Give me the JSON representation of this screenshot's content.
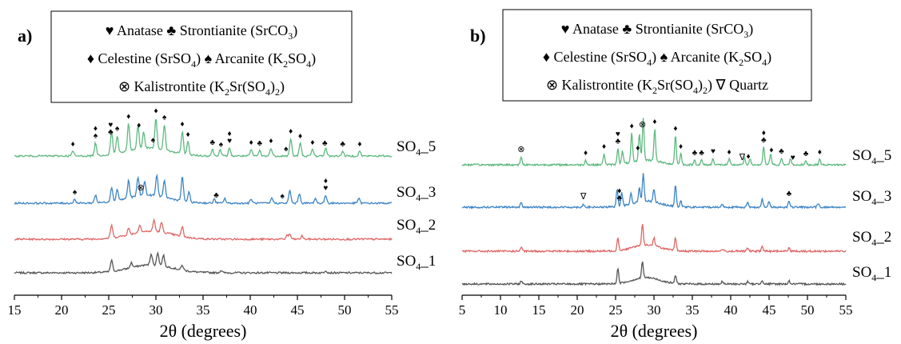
{
  "chart_data": [
    {
      "type": "line",
      "panel_label": "a)",
      "xlabel": "2θ (degrees)",
      "xlim": [
        15,
        55
      ],
      "xticks": [
        15,
        20,
        25,
        30,
        35,
        40,
        45,
        50,
        55
      ],
      "ylabel": "",
      "legend": {
        "position": "top-center",
        "lines": [
          [
            {
              "sym": "♥",
              "text": "Anatase"
            },
            {
              "sym": "♣",
              "text": "Strontianite (SrCO",
              "sub": "3",
              "after": ")"
            }
          ],
          [
            {
              "sym": "♦",
              "text": "Celestine (SrSO",
              "sub": "4",
              "after": ")"
            },
            {
              "sym": "♠",
              "text": "Arcanite (K",
              "sub": "2",
              "after": "SO",
              "sub2": "4",
              "after2": ")"
            }
          ],
          [
            {
              "sym": "⊗",
              "text": "Kalistrontite (K",
              "sub": "2",
              "after": "Sr(SO",
              "sub2": "4",
              "after2": ")",
              "sub3": "2",
              "after3": ")"
            }
          ]
        ]
      },
      "series": [
        {
          "name": "SO4_1",
          "label_main": "SO",
          "label_sub": "4",
          "label_tail": "_1",
          "color": "#555555",
          "peaks": [
            [
              25.3,
              14
            ],
            [
              27.4,
              6
            ],
            [
              29.5,
              14
            ],
            [
              30.2,
              16
            ],
            [
              30.8,
              14
            ],
            [
              32.8,
              6
            ],
            [
              36.9,
              3
            ],
            [
              48.0,
              3
            ]
          ]
        },
        {
          "name": "SO4_2",
          "label_main": "SO",
          "label_sub": "4",
          "label_tail": "_2",
          "color": "#e06666",
          "peaks": [
            [
              25.3,
              16
            ],
            [
              27.1,
              8
            ],
            [
              28.3,
              10
            ],
            [
              29.8,
              14
            ],
            [
              30.6,
              12
            ],
            [
              32.8,
              12
            ],
            [
              43.9,
              5
            ],
            [
              44.2,
              6
            ],
            [
              45.5,
              4
            ]
          ]
        },
        {
          "name": "SO4_3",
          "label_main": "SO",
          "label_sub": "4",
          "label_tail": "_3",
          "color": "#3d85c6",
          "peaks": [
            [
              21.4,
              5
            ],
            [
              23.6,
              10
            ],
            [
              25.3,
              18
            ],
            [
              25.9,
              14
            ],
            [
              27.1,
              22
            ],
            [
              28.1,
              24
            ],
            [
              28.8,
              18
            ],
            [
              30.1,
              26
            ],
            [
              30.9,
              20
            ],
            [
              32.8,
              30
            ],
            [
              33.5,
              12
            ],
            [
              36.2,
              5
            ],
            [
              37.3,
              6
            ],
            [
              40.1,
              5
            ],
            [
              42.3,
              7
            ],
            [
              44.2,
              16
            ],
            [
              45.2,
              12
            ],
            [
              46.9,
              6
            ],
            [
              48.0,
              10
            ],
            [
              51.5,
              6
            ]
          ]
        },
        {
          "name": "SO4_5",
          "label_main": "SO",
          "label_sub": "4",
          "label_tail": "_5",
          "color": "#5fb97f",
          "peaks": [
            [
              21.2,
              6
            ],
            [
              23.6,
              16
            ],
            [
              25.3,
              28
            ],
            [
              25.9,
              22
            ],
            [
              27.1,
              34
            ],
            [
              28.1,
              30
            ],
            [
              28.7,
              20
            ],
            [
              30.0,
              38
            ],
            [
              30.9,
              32
            ],
            [
              32.8,
              28
            ],
            [
              33.4,
              16
            ],
            [
              36.0,
              8
            ],
            [
              36.8,
              8
            ],
            [
              37.8,
              10
            ],
            [
              40.1,
              8
            ],
            [
              41.0,
              7
            ],
            [
              42.2,
              10
            ],
            [
              44.3,
              22
            ],
            [
              45.3,
              16
            ],
            [
              46.6,
              8
            ],
            [
              48.0,
              10
            ],
            [
              49.8,
              6
            ],
            [
              51.6,
              6
            ]
          ]
        }
      ],
      "markers": [
        {
          "series": "SO4_5",
          "x": 21.2,
          "sym": "♦"
        },
        {
          "series": "SO4_5",
          "x": 23.6,
          "sym": "♦♠"
        },
        {
          "series": "SO4_5",
          "x": 25.2,
          "sym": "♥♣"
        },
        {
          "series": "SO4_5",
          "x": 25.9,
          "sym": "♠"
        },
        {
          "series": "SO4_5",
          "x": 27.1,
          "sym": "♦"
        },
        {
          "series": "SO4_5",
          "x": 28.2,
          "sym": "♦"
        },
        {
          "series": "SO4_5",
          "x": 29.7,
          "sym": "♠"
        },
        {
          "series": "SO4_5",
          "x": 30.0,
          "sym": "♦"
        },
        {
          "series": "SO4_5",
          "x": 30.9,
          "sym": "♠"
        },
        {
          "series": "SO4_5",
          "x": 32.8,
          "sym": "♦"
        },
        {
          "series": "SO4_5",
          "x": 33.4,
          "sym": "♦"
        },
        {
          "series": "SO4_5",
          "x": 36.0,
          "sym": "♣"
        },
        {
          "series": "SO4_5",
          "x": 36.9,
          "sym": "♠"
        },
        {
          "series": "SO4_5",
          "x": 37.8,
          "sym": "♦♥"
        },
        {
          "series": "SO4_5",
          "x": 40.1,
          "sym": "♦"
        },
        {
          "series": "SO4_5",
          "x": 41.0,
          "sym": "♣"
        },
        {
          "series": "SO4_5",
          "x": 42.2,
          "sym": "♦"
        },
        {
          "series": "SO4_5",
          "x": 43.8,
          "sym": "♠"
        },
        {
          "series": "SO4_5",
          "x": 44.3,
          "sym": "♦"
        },
        {
          "series": "SO4_5",
          "x": 45.3,
          "sym": "♦"
        },
        {
          "series": "SO4_5",
          "x": 46.6,
          "sym": "♦"
        },
        {
          "series": "SO4_5",
          "x": 47.9,
          "sym": "♣"
        },
        {
          "series": "SO4_5",
          "x": 49.8,
          "sym": "♣"
        },
        {
          "series": "SO4_5",
          "x": 51.6,
          "sym": "♦"
        },
        {
          "series": "SO4_3",
          "x": 21.4,
          "sym": "♠"
        },
        {
          "series": "SO4_3",
          "x": 28.4,
          "sym": "⊗"
        },
        {
          "series": "SO4_3",
          "x": 36.4,
          "sym": "♣"
        },
        {
          "series": "SO4_3",
          "x": 43.4,
          "sym": "♠"
        },
        {
          "series": "SO4_3",
          "x": 48.0,
          "sym": "♦♥"
        }
      ]
    },
    {
      "type": "line",
      "panel_label": "b)",
      "xlabel": "2θ (degrees)",
      "xlim": [
        5,
        55
      ],
      "xticks": [
        5,
        10,
        15,
        20,
        25,
        30,
        35,
        40,
        45,
        50,
        55
      ],
      "ylabel": "",
      "legend": {
        "position": "top-center",
        "lines": [
          [
            {
              "sym": "♥",
              "text": "Anatase"
            },
            {
              "sym": "♣",
              "text": "Strontianite (SrCO",
              "sub": "3",
              "after": ")"
            }
          ],
          [
            {
              "sym": "♦",
              "text": "Celestine (SrSO",
              "sub": "4",
              "after": ")"
            },
            {
              "sym": "♠",
              "text": "Arcanite (K",
              "sub": "2",
              "after": "SO",
              "sub2": "4",
              "after2": ")"
            }
          ],
          [
            {
              "sym": "⊗",
              "text": "Kalistrontite (K",
              "sub": "2",
              "after": "Sr(SO",
              "sub2": "4",
              "after2": ")",
              "sub3": "2",
              "after3": ")"
            },
            {
              "sym": "∇",
              "text": "Quartz"
            }
          ]
        ]
      },
      "series": [
        {
          "name": "SO4_1",
          "label_main": "SO",
          "label_sub": "4",
          "label_tail": "_1",
          "color": "#555555",
          "peaks": [
            [
              12.7,
              4
            ],
            [
              25.3,
              18
            ],
            [
              28.5,
              20
            ],
            [
              32.8,
              10
            ],
            [
              38.9,
              3
            ],
            [
              42.2,
              3
            ],
            [
              44.1,
              5
            ],
            [
              47.6,
              4
            ]
          ]
        },
        {
          "name": "SO4_2",
          "label_main": "SO",
          "label_sub": "4",
          "label_tail": "_2",
          "color": "#e06666",
          "peaks": [
            [
              12.7,
              5
            ],
            [
              25.3,
              16
            ],
            [
              28.5,
              26
            ],
            [
              30.0,
              10
            ],
            [
              32.8,
              16
            ],
            [
              38.9,
              3
            ],
            [
              42.2,
              4
            ],
            [
              44.1,
              6
            ],
            [
              47.6,
              5
            ]
          ]
        },
        {
          "name": "SO4_3",
          "label_main": "SO",
          "label_sub": "4",
          "label_tail": "_3",
          "color": "#3d85c6",
          "peaks": [
            [
              12.7,
              6
            ],
            [
              20.8,
              4
            ],
            [
              25.2,
              22
            ],
            [
              25.8,
              18
            ],
            [
              27.0,
              14
            ],
            [
              28.1,
              18
            ],
            [
              28.6,
              34
            ],
            [
              30.0,
              16
            ],
            [
              32.8,
              26
            ],
            [
              33.5,
              8
            ],
            [
              38.9,
              4
            ],
            [
              42.2,
              6
            ],
            [
              44.1,
              10
            ],
            [
              45.0,
              7
            ],
            [
              47.6,
              8
            ],
            [
              51.4,
              5
            ]
          ]
        },
        {
          "name": "SO4_5",
          "label_main": "SO",
          "label_sub": "4",
          "label_tail": "_5",
          "color": "#5fb97f",
          "peaks": [
            [
              12.7,
              10
            ],
            [
              21.1,
              6
            ],
            [
              23.5,
              14
            ],
            [
              25.3,
              20
            ],
            [
              25.9,
              16
            ],
            [
              27.1,
              36
            ],
            [
              28.1,
              34
            ],
            [
              28.6,
              52
            ],
            [
              30.1,
              40
            ],
            [
              32.8,
              36
            ],
            [
              33.5,
              14
            ],
            [
              35.3,
              6
            ],
            [
              36.2,
              6
            ],
            [
              37.7,
              8
            ],
            [
              39.8,
              7
            ],
            [
              41.8,
              8
            ],
            [
              42.5,
              8
            ],
            [
              44.3,
              22
            ],
            [
              45.2,
              14
            ],
            [
              46.6,
              8
            ],
            [
              47.8,
              8
            ],
            [
              49.8,
              5
            ],
            [
              51.6,
              7
            ]
          ]
        }
      ],
      "markers": [
        {
          "series": "SO4_5",
          "x": 12.7,
          "sym": "⊗"
        },
        {
          "series": "SO4_5",
          "x": 21.1,
          "sym": "♦"
        },
        {
          "series": "SO4_5",
          "x": 23.5,
          "sym": "♦"
        },
        {
          "series": "SO4_5",
          "x": 25.3,
          "sym": "♥♣"
        },
        {
          "series": "SO4_5",
          "x": 27.1,
          "sym": "♦"
        },
        {
          "series": "SO4_5",
          "x": 27.9,
          "sym": "♦"
        },
        {
          "series": "SO4_5",
          "x": 28.5,
          "sym": "⊗"
        },
        {
          "series": "SO4_5",
          "x": 30.1,
          "sym": "♦"
        },
        {
          "series": "SO4_5",
          "x": 32.8,
          "sym": "♦"
        },
        {
          "series": "SO4_5",
          "x": 33.5,
          "sym": "♦"
        },
        {
          "series": "SO4_5",
          "x": 35.3,
          "sym": "♣"
        },
        {
          "series": "SO4_5",
          "x": 36.2,
          "sym": "♣"
        },
        {
          "series": "SO4_5",
          "x": 37.7,
          "sym": "♥"
        },
        {
          "series": "SO4_5",
          "x": 39.8,
          "sym": "♦"
        },
        {
          "series": "SO4_5",
          "x": 41.5,
          "sym": "∇"
        },
        {
          "series": "SO4_5",
          "x": 42.3,
          "sym": "♦"
        },
        {
          "series": "SO4_5",
          "x": 44.3,
          "sym": "♦♣"
        },
        {
          "series": "SO4_5",
          "x": 45.3,
          "sym": "♦"
        },
        {
          "series": "SO4_5",
          "x": 46.6,
          "sym": "♣"
        },
        {
          "series": "SO4_5",
          "x": 48.1,
          "sym": "♥"
        },
        {
          "series": "SO4_5",
          "x": 49.8,
          "sym": "♣"
        },
        {
          "series": "SO4_5",
          "x": 51.6,
          "sym": "♦"
        },
        {
          "series": "SO4_3",
          "x": 20.8,
          "sym": "∇"
        },
        {
          "series": "SO4_3",
          "x": 25.5,
          "sym": "♦♣"
        },
        {
          "series": "SO4_3",
          "x": 47.6,
          "sym": "♣"
        }
      ]
    }
  ]
}
